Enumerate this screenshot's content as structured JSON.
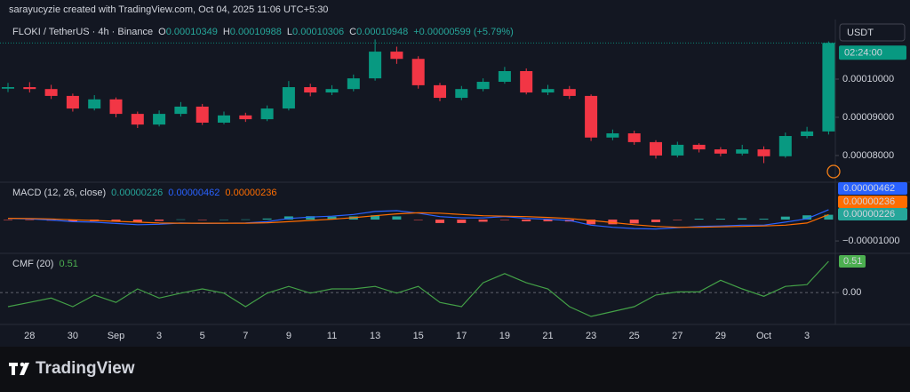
{
  "banner": "sarayucyzie created with TradingView.com, Oct 04, 2025 11:06 UTC+5:30",
  "footer": "TradingView",
  "chart_data": [
    {
      "type": "candlestick",
      "title": "FLOKI / TetherUS · 4h · Binance",
      "legend": [
        {
          "label": "O",
          "value": 0.00010349
        },
        {
          "label": "H",
          "value": 0.00010988
        },
        {
          "label": "L",
          "value": 0.00010306
        },
        {
          "label": "C",
          "value": 0.00010948
        }
      ],
      "change": "+0.00000599 (+5.79%)",
      "currency": "USDT",
      "countdown": "02:24:00",
      "categories": [
        null,
        "28",
        null,
        "30",
        null,
        "Sep",
        null,
        "3",
        null,
        "5",
        null,
        "7",
        null,
        "9",
        null,
        "11",
        null,
        "13",
        null,
        "15",
        null,
        "17",
        null,
        "19",
        null,
        "21",
        null,
        "23",
        null,
        "25",
        null,
        "27",
        null,
        "29",
        null,
        "Oct",
        null,
        "3",
        null
      ],
      "open": [
        9.75e-05,
        9.79e-05,
        9.74e-05,
        9.56e-05,
        9.23e-05,
        9.47e-05,
        9.09e-05,
        8.81e-05,
        9.09e-05,
        9.28e-05,
        8.86e-05,
        9.05e-05,
        8.95e-05,
        9.23e-05,
        9.79e-05,
        9.65e-05,
        9.74e-05,
        0.0001002,
        0.0001072,
        0.0001053,
        9.84e-05,
        9.51e-05,
        9.74e-05,
        9.93e-05,
        0.0001021,
        9.65e-05,
        9.74e-05,
        9.56e-05,
        8.47e-05,
        8.58e-05,
        8.35e-05,
        8e-05,
        8.28e-05,
        8.16e-05,
        8.05e-05,
        8.16e-05,
        7.98e-05,
        8.51e-05,
        8.63e-05
      ],
      "high": [
        9.9e-05,
        9.92e-05,
        9.85e-05,
        9.62e-05,
        9.58e-05,
        9.52e-05,
        9.15e-05,
        9.18e-05,
        9.4e-05,
        9.35e-05,
        9.15e-05,
        9.12e-05,
        9.31e-05,
        9.95e-05,
        9.88e-05,
        9.84e-05,
        0.0001012,
        0.0001104,
        0.0001085,
        0.000106,
        9.9e-05,
        9.82e-05,
        0.0001002,
        0.0001032,
        0.0001028,
        9.85e-05,
        9.82e-05,
        9.6e-05,
        8.68e-05,
        8.65e-05,
        8.4e-05,
        8.36e-05,
        8.32e-05,
        8.22e-05,
        8.28e-05,
        8.24e-05,
        8.6e-05,
        8.75e-05,
        0.00010988
      ],
      "low": [
        9.66e-05,
        9.65e-05,
        9.48e-05,
        9.15e-05,
        9.18e-05,
        9e-05,
        8.72e-05,
        8.76e-05,
        9.02e-05,
        8.8e-05,
        8.82e-05,
        8.88e-05,
        8.9e-05,
        9.18e-05,
        9.55e-05,
        9.58e-05,
        9.68e-05,
        9.96e-05,
        0.000104,
        9.75e-05,
        9.42e-05,
        9.45e-05,
        9.68e-05,
        9.88e-05,
        9.6e-05,
        9.58e-05,
        9.48e-05,
        8.38e-05,
        8.4e-05,
        8.28e-05,
        7.92e-05,
        7.95e-05,
        8.08e-05,
        7.98e-05,
        8e-05,
        7.8e-05,
        7.94e-05,
        8.45e-05,
        8.55e-05
      ],
      "close": [
        9.79e-05,
        9.74e-05,
        9.56e-05,
        9.23e-05,
        9.47e-05,
        9.09e-05,
        8.81e-05,
        9.09e-05,
        9.28e-05,
        8.86e-05,
        9.05e-05,
        8.95e-05,
        9.23e-05,
        9.79e-05,
        9.65e-05,
        9.74e-05,
        0.0001002,
        0.0001072,
        0.0001053,
        9.84e-05,
        9.51e-05,
        9.74e-05,
        9.93e-05,
        0.0001021,
        9.65e-05,
        9.74e-05,
        9.56e-05,
        8.47e-05,
        8.58e-05,
        8.35e-05,
        8e-05,
        8.28e-05,
        8.16e-05,
        8.05e-05,
        8.16e-05,
        7.98e-05,
        8.51e-05,
        8.63e-05,
        0.00010948
      ],
      "up_color": "#089981",
      "down_color": "#f23645",
      "ylim": [
        7.3e-05,
        0.0001156
      ],
      "yticks": [
        {
          "value": 0.0001,
          "label": "0.00010000"
        },
        {
          "value": 9e-05,
          "label": "0.00009000"
        },
        {
          "value": 8e-05,
          "label": "0.00008000"
        }
      ]
    },
    {
      "type": "macd",
      "title": "MACD (12, 26, close)",
      "histogram": {
        "up_color": "#26a69a",
        "down_color": "#ff5252",
        "values": [
          -1e-07,
          -2e-07,
          -5e-07,
          -9e-07,
          -8e-07,
          -1e-06,
          -1.2e-06,
          -6e-07,
          1e-07,
          -1e-07,
          0,
          1e-07,
          5e-07,
          1.5e-06,
          1.6e-06,
          1.4e-06,
          1.5e-06,
          2e-06,
          1.5e-06,
          -2e-07,
          -1.6e-06,
          -1.6e-06,
          -1e-06,
          -2e-07,
          -8e-07,
          -8e-07,
          -9e-07,
          -2.2e-06,
          -2.2e-06,
          -1.8e-06,
          -1.2e-06,
          -2e-07,
          4e-07,
          4e-07,
          6e-07,
          4e-07,
          1.4e-06,
          2e-06,
          2.26e-06
        ]
      },
      "series": [
        {
          "color": "#2962ff",
          "values": [
            5e-07,
            3e-07,
            -2e-07,
            -1e-06,
            -1.2e-06,
            -1.8e-06,
            -2.4e-06,
            -2.2e-06,
            -1.6e-06,
            -1.8e-06,
            -1.7e-06,
            -1.6e-06,
            -1e-06,
            5e-07,
            1.2e-06,
            1.6e-06,
            2.4e-06,
            3.8e-06,
            4.2e-06,
            3e-06,
            1.4e-06,
            8e-07,
            8e-07,
            1.4e-06,
            6e-07,
            2e-07,
            -4e-07,
            -2.6e-06,
            -3.6e-06,
            -4.2e-06,
            -4.4e-06,
            -3.8e-06,
            -3.2e-06,
            -3e-06,
            -2.6e-06,
            -2.6e-06,
            -1.2e-06,
            4e-07,
            4.62e-06
          ]
        },
        {
          "color": "#ff6d00",
          "values": [
            6e-07,
            5e-07,
            3e-07,
            -1e-07,
            -4e-07,
            -8e-07,
            -1.2e-06,
            -1.6e-06,
            -1.7e-06,
            -1.7e-06,
            -1.7e-06,
            -1.7e-06,
            -1.5e-06,
            -1e-06,
            -4e-07,
            2e-07,
            9e-07,
            1.8e-06,
            2.7e-06,
            3.2e-06,
            3e-06,
            2.4e-06,
            1.8e-06,
            1.6e-06,
            1.4e-06,
            1e-06,
            5e-07,
            -4e-07,
            -1.4e-06,
            -2.4e-06,
            -3.2e-06,
            -3.6e-06,
            -3.6e-06,
            -3.4e-06,
            -3.2e-06,
            -3e-06,
            -2.6e-06,
            -1.6e-06,
            2.36e-06
          ]
        }
      ],
      "ylim": [
        -1.58e-05,
        1.75e-05
      ],
      "yticks": [
        {
          "value": -1e-05,
          "label": "−0.00001000"
        }
      ]
    },
    {
      "type": "line",
      "title": "CMF (20)",
      "color": "#43a047",
      "values": [
        -0.23,
        -0.16,
        -0.09,
        -0.23,
        -0.04,
        -0.16,
        0.06,
        -0.09,
        -0.01,
        0.06,
        -0.01,
        -0.23,
        -0.01,
        0.1,
        -0.01,
        0.06,
        0.06,
        0.1,
        -0.01,
        0.1,
        -0.16,
        -0.23,
        0.16,
        0.31,
        0.16,
        0.06,
        -0.23,
        -0.39,
        -0.31,
        -0.23,
        -0.04,
        0.01,
        0.01,
        0.2,
        0.06,
        -0.06,
        0.1,
        0.13,
        0.51
      ],
      "ylim": [
        -0.52,
        0.64
      ],
      "yticks": [
        {
          "value": 0,
          "label": "0.00"
        }
      ]
    }
  ]
}
